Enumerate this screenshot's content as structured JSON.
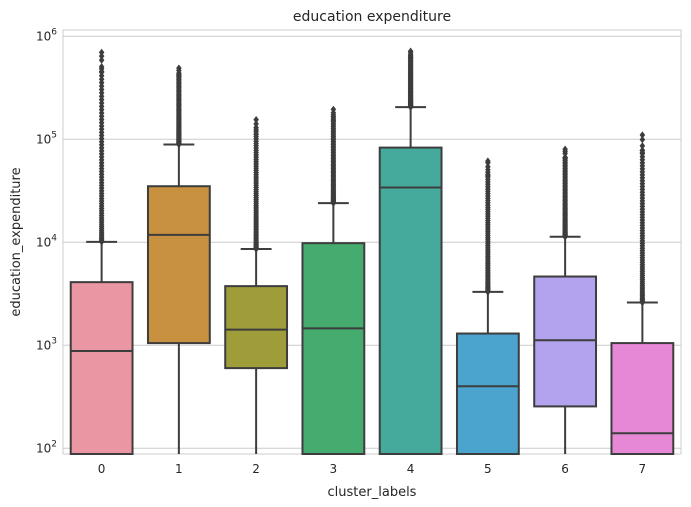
{
  "chart_data": {
    "type": "box",
    "title": "education expenditure",
    "xlabel": "cluster_labels",
    "ylabel": "education_expenditure",
    "yscale": "log",
    "ylim": [
      88,
      1150000
    ],
    "y_ticks": [
      {
        "value": 100,
        "base": "10",
        "exp": "2"
      },
      {
        "value": 1000,
        "base": "10",
        "exp": "3"
      },
      {
        "value": 10000,
        "base": "10",
        "exp": "4"
      },
      {
        "value": 100000,
        "base": "10",
        "exp": "5"
      },
      {
        "value": 1000000,
        "base": "10",
        "exp": "6"
      }
    ],
    "grid": true,
    "categories": [
      "0",
      "1",
      "2",
      "3",
      "4",
      "5",
      "6",
      "7"
    ],
    "boxes": [
      {
        "label": "0",
        "color": "#ea96a3",
        "q1": 88,
        "median": 880,
        "q3": 4100,
        "whisker_low": 88,
        "whisker_high": 10100,
        "outlier_max": 720000
      },
      {
        "label": "1",
        "color": "#c8913f",
        "q1": 1050,
        "median": 11800,
        "q3": 35000,
        "whisker_low": 88,
        "whisker_high": 89000,
        "outlier_max": 490000
      },
      {
        "label": "2",
        "color": "#9f9d3a",
        "q1": 600,
        "median": 1420,
        "q3": 3750,
        "whisker_low": 88,
        "whisker_high": 8600,
        "outlier_max": 155000
      },
      {
        "label": "3",
        "color": "#46ab6f",
        "q1": 88,
        "median": 1460,
        "q3": 9800,
        "whisker_low": 88,
        "whisker_high": 24000,
        "outlier_max": 195000
      },
      {
        "label": "4",
        "color": "#45aa9c",
        "q1": 88,
        "median": 34000,
        "q3": 83000,
        "whisker_low": 88,
        "whisker_high": 205000,
        "outlier_max": 720000
      },
      {
        "label": "5",
        "color": "#4aa4ce",
        "q1": 88,
        "median": 400,
        "q3": 1300,
        "whisker_low": 88,
        "whisker_high": 3300,
        "outlier_max": 63000
      },
      {
        "label": "6",
        "color": "#b3a3ee",
        "q1": 255,
        "median": 1120,
        "q3": 4650,
        "whisker_low": 88,
        "whisker_high": 11300,
        "outlier_max": 80000
      },
      {
        "label": "7",
        "color": "#e788d6",
        "q1": 88,
        "median": 140,
        "q3": 1050,
        "whisker_low": 88,
        "whisker_high": 2600,
        "outlier_max": 110000
      }
    ]
  }
}
